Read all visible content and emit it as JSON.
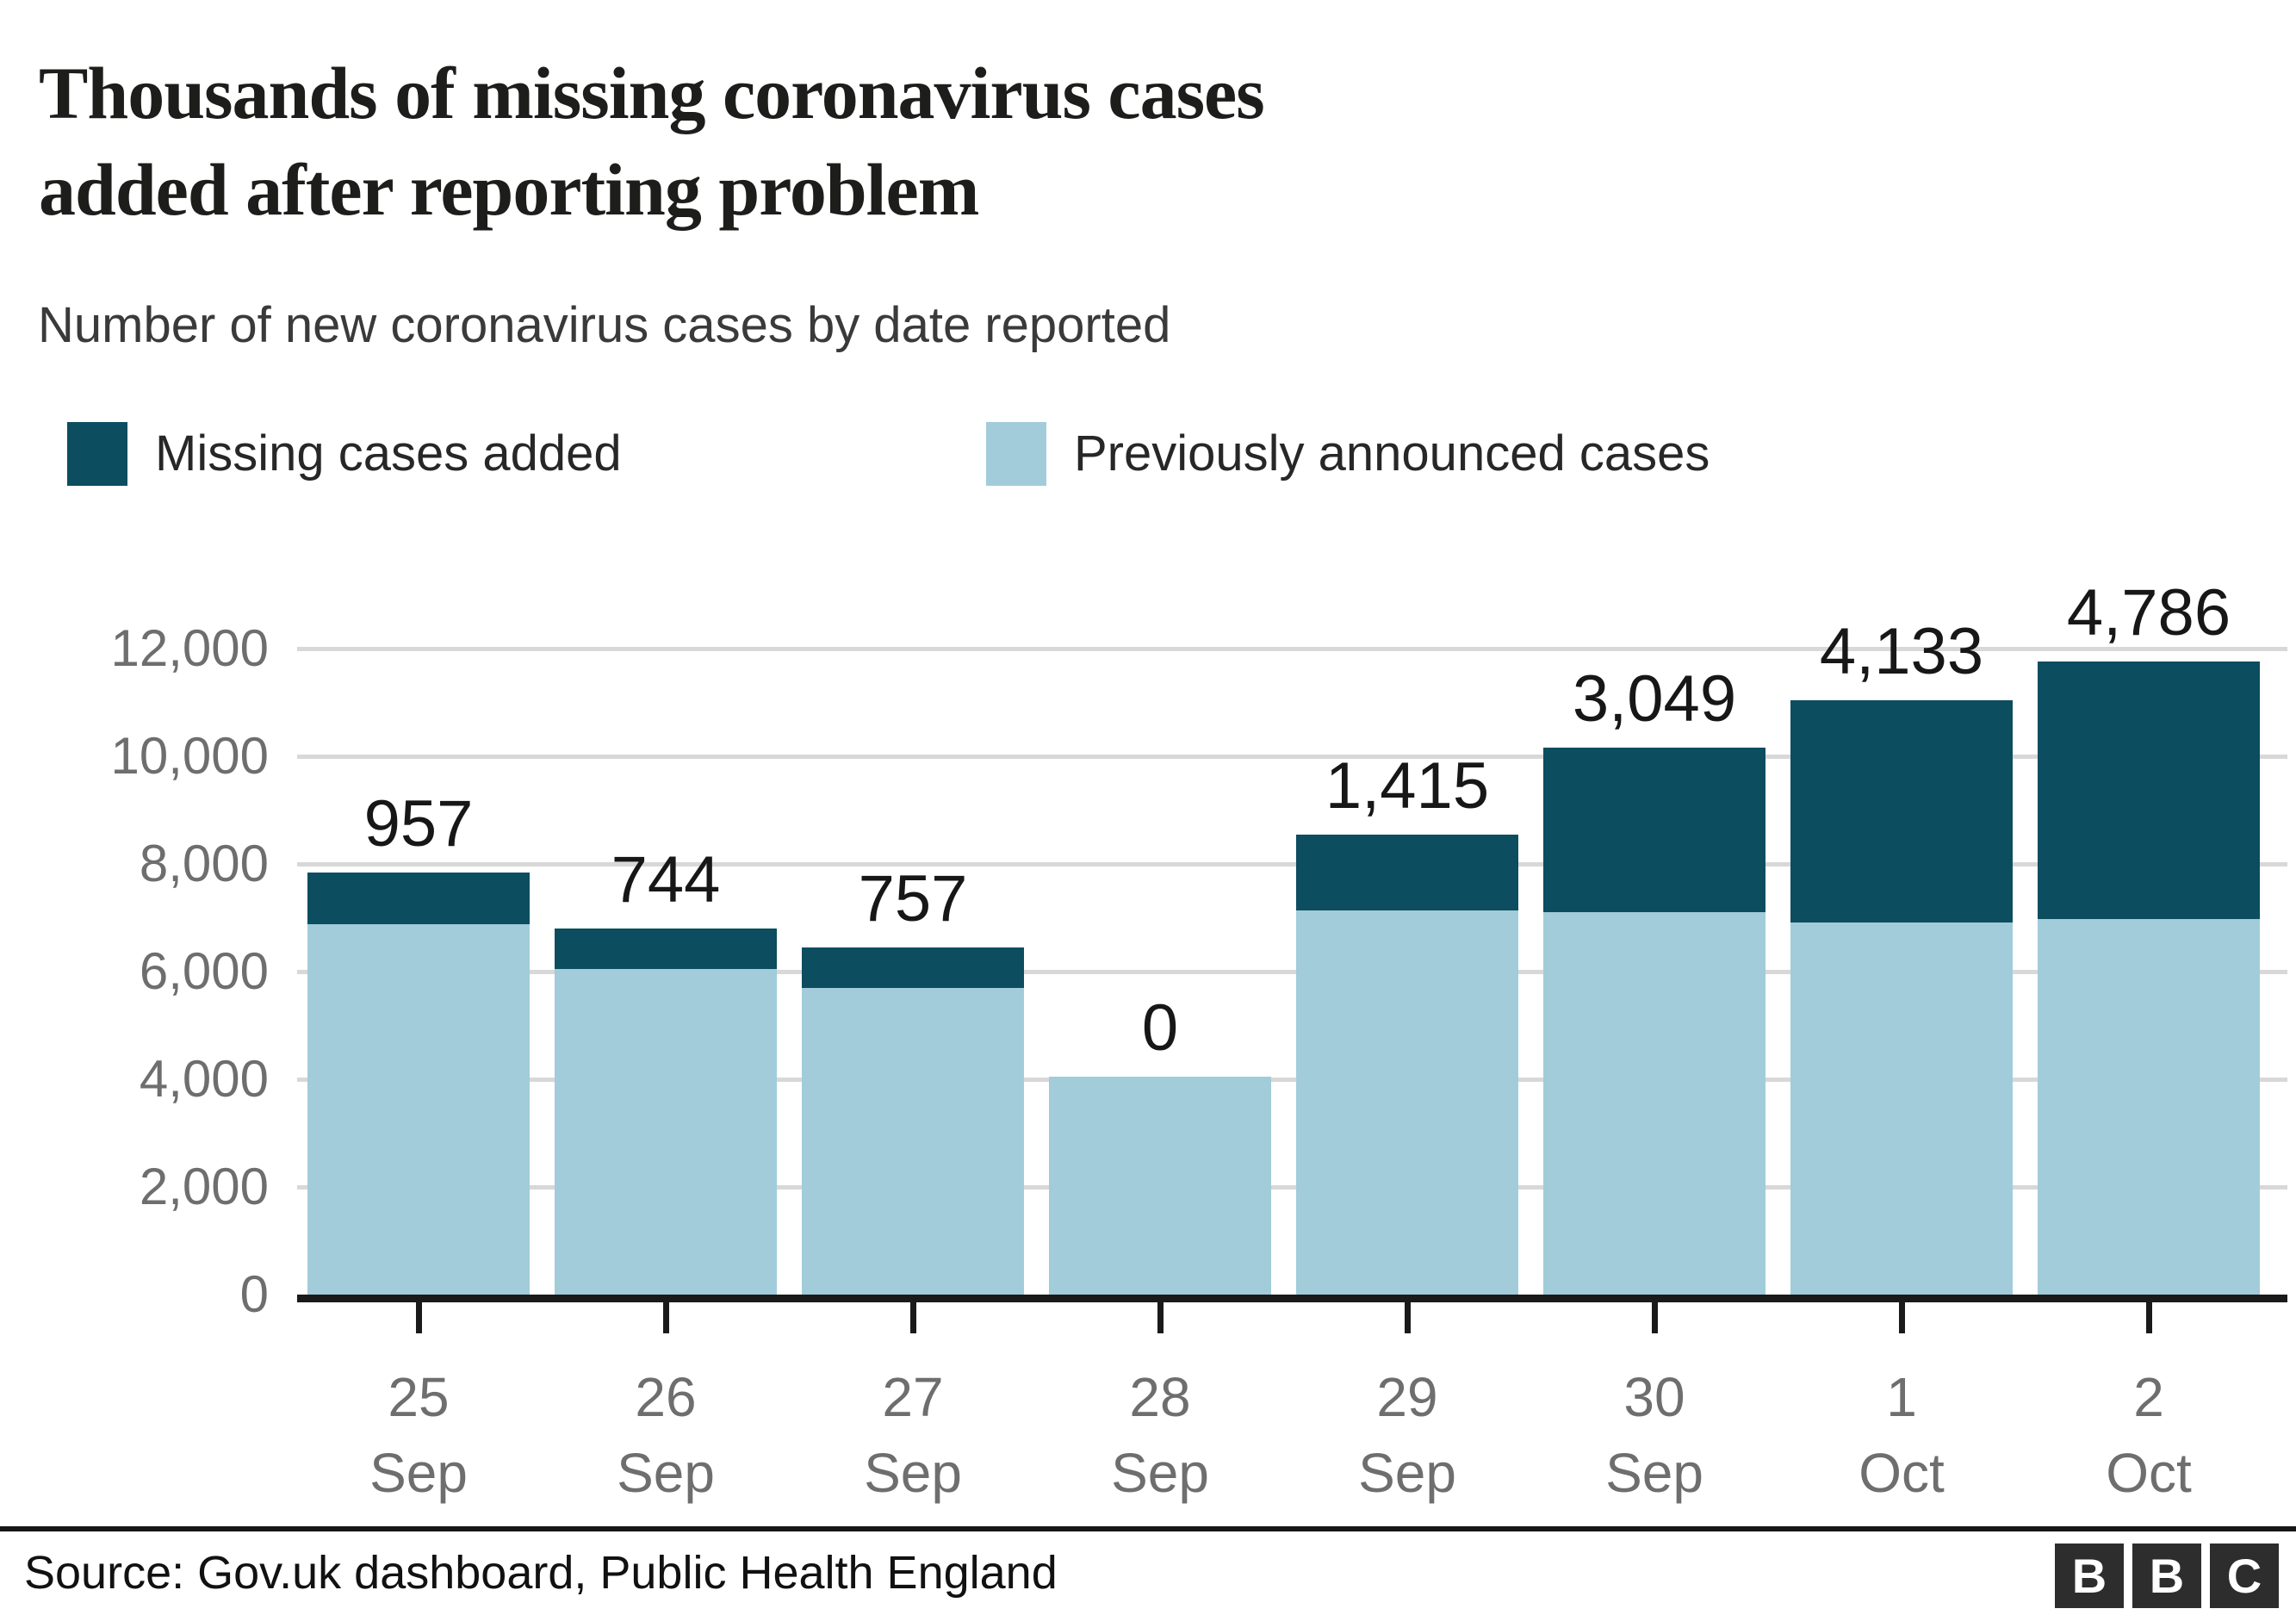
{
  "header": {
    "title_line1": "Thousands of missing coronavirus cases",
    "title_line2": "added after reporting problem",
    "subtitle": "Number of new coronavirus cases by date reported"
  },
  "legend": [
    {
      "label": "Missing cases added",
      "color": "#0c4d5f"
    },
    {
      "label": "Previously announced cases",
      "color": "#a2ccd9"
    }
  ],
  "chart_data": {
    "type": "bar",
    "stacked": true,
    "title": "Thousands of missing coronavirus cases added after reporting problem",
    "subtitle": "Number of new coronavirus cases by date reported",
    "categories": [
      "25 Sep",
      "26 Sep",
      "27 Sep",
      "28 Sep",
      "29 Sep",
      "30 Sep",
      "1 Oct",
      "2 Oct"
    ],
    "series": [
      {
        "name": "Previously announced cases",
        "color": "#a2ccd9",
        "values": [
          6874,
          6042,
          5693,
          4044,
          7143,
          7108,
          6914,
          6968
        ]
      },
      {
        "name": "Missing cases added",
        "color": "#0c4d5f",
        "values": [
          957,
          744,
          757,
          0,
          1415,
          3049,
          4133,
          4786
        ]
      }
    ],
    "bar_value_labels": [
      "957",
      "744",
      "757",
      "0",
      "1,415",
      "3,049",
      "4,133",
      "4,786"
    ],
    "ylim": [
      0,
      12000
    ],
    "yticks": {
      "values": [
        12000,
        10000,
        8000,
        6000,
        4000,
        2000,
        0
      ],
      "labels": [
        "12,000",
        "10,000",
        "8,000",
        "6,000",
        "4,000",
        "2,000",
        "0"
      ]
    },
    "grid": true,
    "legend_position": "top",
    "xlabel": "",
    "ylabel": ""
  },
  "footer": {
    "source": "Source: Gov.uk dashboard, Public Health England",
    "logo": [
      "B",
      "B",
      "C"
    ]
  }
}
